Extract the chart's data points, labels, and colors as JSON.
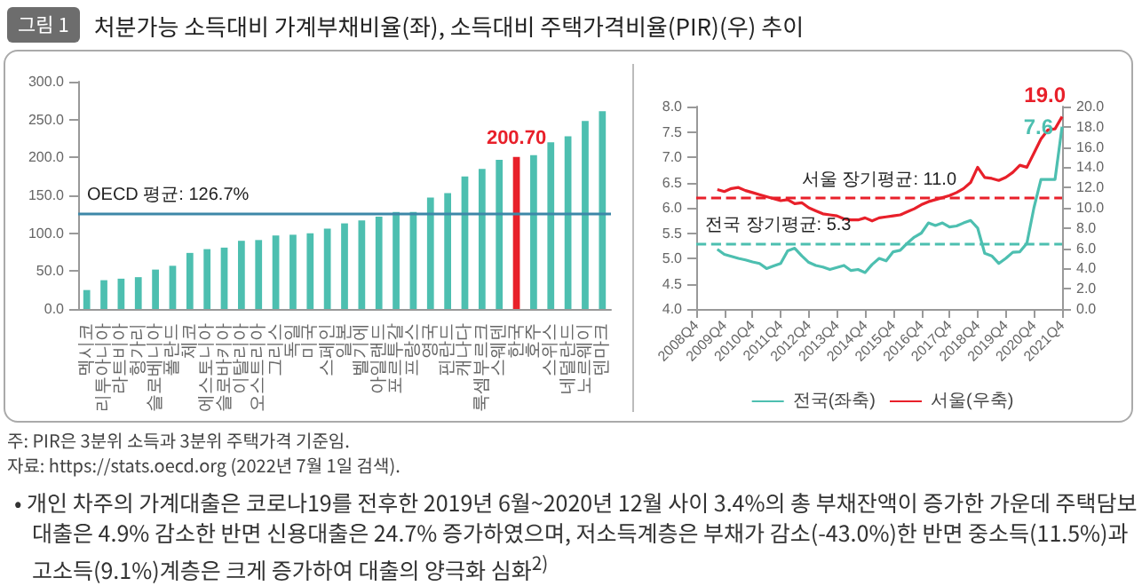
{
  "chart_data": [
    {
      "type": "bar",
      "title": "처분가능 소득대비 가계부채비율(좌), 소득대비 주택가격비율(PIR)(우) 추이",
      "annotations": [
        "그림 1",
        "주: PIR은 3분위 소득과 3분위 주택가격 기준임.",
        "자료: https://stats.oecd.org (2022년 7월 1일 검색).",
        "• 개인 차주의 가계대출은 코로나19를 전후한 2019년 6월~2020년 12월 사이 3.4%의 총 부채잔액이 증가한 가운데 주택담보대출은 4.9% 감소한 반면 신용대출은 24.7% 증가하였으며, 저소득계층은 부채가 감소(-43.0%)한 반면 중소득(11.5%)과 고소득(9.1%)계층은 크게 증가하여 대출의 양극화 심화$^{2)}$"
      ],
      "categories": [
        "멕시코",
        "리투아니아",
        "라트비아",
        "헝가리",
        "슬로베니아",
        "폴란드",
        "체코",
        "에스토니아",
        "슬로바키아",
        "이탈리아",
        "오스트리아",
        "그리스",
        "독일",
        "미국",
        "스페인",
        "일본",
        "벨기에",
        "아일랜드",
        "포르투갈",
        "프랑스",
        "영국",
        "핀란드",
        "캐나다",
        "룩셈부르크",
        "스웨덴",
        "한국",
        "호주",
        "스위스",
        "네덜란드",
        "노르웨이",
        "덴마크"
      ],
      "values": [
        25,
        38,
        40,
        42,
        52,
        57,
        74,
        79,
        81,
        90,
        91,
        97,
        98,
        100,
        106,
        113,
        117,
        122,
        128,
        128,
        147,
        153,
        175,
        185,
        197,
        200.7,
        203,
        220,
        228,
        248,
        261
      ],
      "colors": [
        "#4dbfb0",
        "#4dbfb0",
        "#4dbfb0",
        "#4dbfb0",
        "#4dbfb0",
        "#4dbfb0",
        "#4dbfb0",
        "#4dbfb0",
        "#4dbfb0",
        "#4dbfb0",
        "#4dbfb0",
        "#4dbfb0",
        "#4dbfb0",
        "#4dbfb0",
        "#4dbfb0",
        "#4dbfb0",
        "#4dbfb0",
        "#4dbfb0",
        "#4dbfb0",
        "#4dbfb0",
        "#4dbfb0",
        "#4dbfb0",
        "#4dbfb0",
        "#4dbfb0",
        "#4dbfb0",
        "#e8202a",
        "#4dbfb0",
        "#4dbfb0",
        "#4dbfb0",
        "#4dbfb0",
        "#4dbfb0"
      ],
      "value_labels": [
        null,
        null,
        null,
        null,
        null,
        null,
        null,
        null,
        null,
        null,
        null,
        null,
        null,
        null,
        null,
        null,
        null,
        null,
        null,
        null,
        null,
        null,
        null,
        null,
        null,
        "200.70",
        null,
        null,
        null,
        null,
        null
      ],
      "ylim": [
        0,
        300
      ],
      "yticks": [
        {
          "value": 0,
          "label": "0.0"
        },
        {
          "value": 50,
          "label": "50.0"
        },
        {
          "value": 100,
          "label": "100.0"
        },
        {
          "value": 150,
          "label": "150.0"
        },
        {
          "value": 200,
          "label": "200.0"
        },
        {
          "value": 250,
          "label": "250.0"
        },
        {
          "value": 300,
          "label": "300.0"
        }
      ],
      "ref_lines": [
        {
          "axis": "y",
          "value": 126.7,
          "label": "OECD 평균: 126.7%",
          "color": "#3d88a8"
        }
      ]
    },
    {
      "type": "line",
      "categories": [
        "2008Q4",
        null,
        null,
        null,
        "2009Q4",
        null,
        null,
        null,
        "2010Q4",
        null,
        null,
        null,
        "2011Q4",
        null,
        null,
        null,
        "2012Q4",
        null,
        null,
        null,
        "2013Q4",
        null,
        null,
        null,
        "2014Q4",
        null,
        null,
        null,
        "2015Q4",
        null,
        null,
        null,
        "2016Q4",
        null,
        null,
        null,
        "2017Q4",
        null,
        null,
        null,
        "2018Q4",
        null,
        null,
        null,
        "2019Q4",
        null,
        null,
        null,
        "2020Q4",
        null,
        null,
        null,
        "2021Q4"
      ],
      "series": [
        {
          "name": "전국(좌축)",
          "color": "#4dbfb0",
          "values": [
            null,
            null,
            null,
            5.18,
            5.08,
            5.04,
            5.0,
            4.97,
            4.93,
            4.9,
            4.8,
            4.85,
            4.9,
            5.15,
            5.2,
            5.05,
            4.92,
            4.86,
            4.83,
            4.78,
            4.82,
            4.86,
            4.76,
            4.78,
            4.72,
            4.88,
            5.0,
            4.95,
            5.13,
            5.16,
            5.3,
            5.42,
            5.5,
            5.7,
            5.65,
            5.7,
            5.62,
            5.64,
            5.7,
            5.75,
            5.6,
            5.1,
            5.05,
            4.9,
            5.0,
            5.12,
            5.13,
            5.3,
            6.0,
            6.56,
            6.56,
            6.56,
            7.6
          ],
          "value_labels": [
            null,
            null,
            null,
            null,
            null,
            null,
            null,
            null,
            null,
            null,
            null,
            null,
            null,
            null,
            null,
            null,
            null,
            null,
            null,
            null,
            null,
            null,
            null,
            null,
            null,
            null,
            null,
            null,
            null,
            null,
            null,
            null,
            null,
            null,
            null,
            null,
            null,
            null,
            null,
            null,
            null,
            null,
            null,
            null,
            null,
            null,
            null,
            null,
            null,
            null,
            null,
            null,
            "7.6"
          ]
        },
        {
          "name": "서울(우축)",
          "color": "#e8202a",
          "axis": "y2",
          "values": [
            null,
            null,
            null,
            11.8,
            11.6,
            11.9,
            12.0,
            11.7,
            11.5,
            11.3,
            11.1,
            10.9,
            10.7,
            10.8,
            10.4,
            10.5,
            10.0,
            9.7,
            9.4,
            9.3,
            9.2,
            8.9,
            8.8,
            8.8,
            9.0,
            8.7,
            9.0,
            9.1,
            9.2,
            9.3,
            9.6,
            9.9,
            10.3,
            10.6,
            10.8,
            11.0,
            11.2,
            11.5,
            11.9,
            12.5,
            14.0,
            13.0,
            12.9,
            12.7,
            13.0,
            13.5,
            14.2,
            14.0,
            15.4,
            16.8,
            17.7,
            17.8,
            19.0
          ],
          "value_labels": [
            null,
            null,
            null,
            null,
            null,
            null,
            null,
            null,
            null,
            null,
            null,
            null,
            null,
            null,
            null,
            null,
            null,
            null,
            null,
            null,
            null,
            null,
            null,
            null,
            null,
            null,
            null,
            null,
            null,
            null,
            null,
            null,
            null,
            null,
            null,
            null,
            null,
            null,
            null,
            null,
            null,
            null,
            null,
            null,
            null,
            null,
            null,
            null,
            null,
            null,
            null,
            null,
            "19.0"
          ]
        }
      ],
      "ylim": [
        4,
        8
      ],
      "yticks": [
        {
          "value": 4,
          "label": "4.0"
        },
        {
          "value": 4.5,
          "label": "4.5"
        },
        {
          "value": 5,
          "label": "5.0"
        },
        {
          "value": 5.5,
          "label": "5.5"
        },
        {
          "value": 6,
          "label": "6.0"
        },
        {
          "value": 6.5,
          "label": "6.5"
        },
        {
          "value": 7,
          "label": "7.0"
        },
        {
          "value": 7.5,
          "label": "7.5"
        },
        {
          "value": 8,
          "label": "8.0"
        }
      ],
      "y2lim": [
        0,
        20
      ],
      "y2ticks": [
        {
          "value": 0,
          "label": "0.0"
        },
        {
          "value": 2,
          "label": "2.0"
        },
        {
          "value": 4,
          "label": "4.0"
        },
        {
          "value": 6,
          "label": "6.0"
        },
        {
          "value": 8,
          "label": "8.0"
        },
        {
          "value": 10,
          "label": "10.0"
        },
        {
          "value": 12,
          "label": "12.0"
        },
        {
          "value": 14,
          "label": "14.0"
        },
        {
          "value": 16,
          "label": "16.0"
        },
        {
          "value": 18,
          "label": "18.0"
        },
        {
          "value": 20,
          "label": "20.0"
        }
      ],
      "ref_lines": [
        {
          "axis": "y2",
          "value": 11.0,
          "label": "서울 장기평균: 11.0",
          "color": "#e8202a",
          "line_style": "dashed"
        },
        {
          "axis": "y",
          "value": 5.3,
          "label": "전국 장기평균: 5.3",
          "color": "#4dbfb0",
          "line_style": "dashed"
        }
      ],
      "legend": "bottom",
      "marker": "none"
    }
  ]
}
